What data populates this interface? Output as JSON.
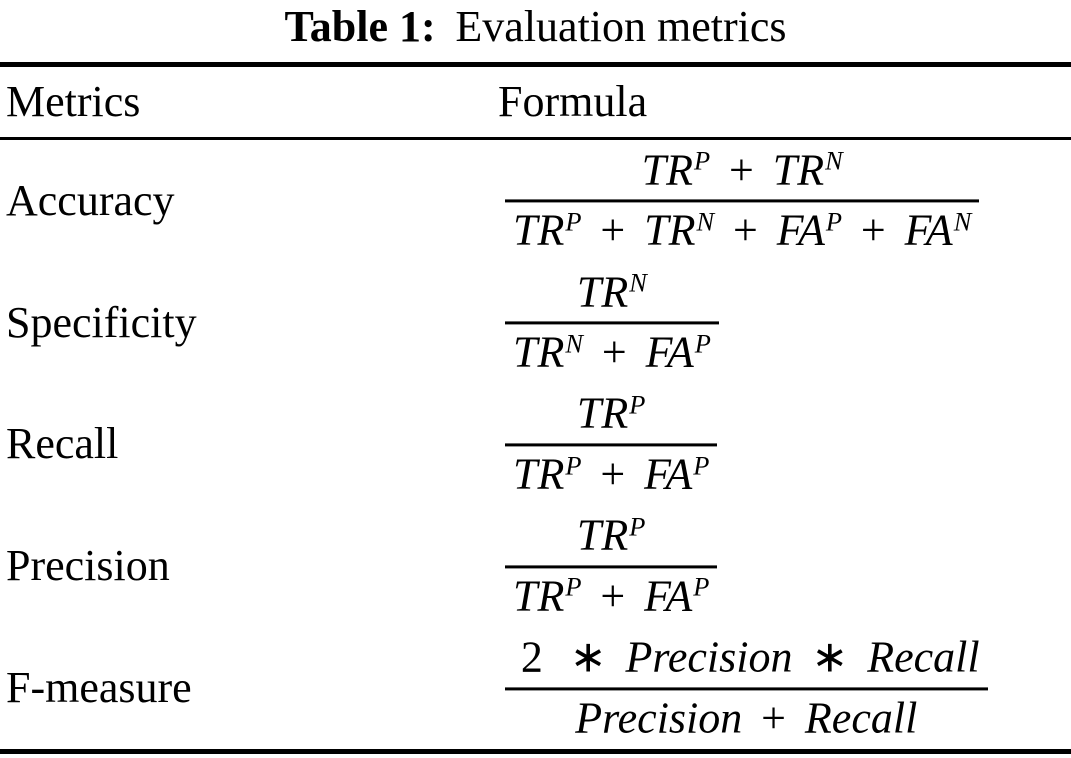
{
  "caption": {
    "label": "Table 1:",
    "text": "Evaluation metrics"
  },
  "table": {
    "headers": {
      "metrics": "Metrics",
      "formula": "Formula"
    },
    "rows": [
      {
        "metric": "Accuracy",
        "numerator": "TR^P + TR^N",
        "denominator": "TR^P + TR^N + FA^P + FA^N"
      },
      {
        "metric": "Specificity",
        "numerator": "TR^N",
        "denominator": "TR^N + FA^P"
      },
      {
        "metric": "Recall",
        "numerator": "TR^P",
        "denominator": "TR^P + FA^P"
      },
      {
        "metric": "Precision",
        "numerator": "TR^P",
        "denominator": "TR^P + FA^P"
      },
      {
        "metric": "F-measure",
        "numerator": "2 ∗ Precision ∗ Recall",
        "denominator": "Precision + Recall"
      }
    ]
  },
  "colors": {
    "text": "#000000",
    "background": "#ffffff",
    "rule": "#000000"
  }
}
